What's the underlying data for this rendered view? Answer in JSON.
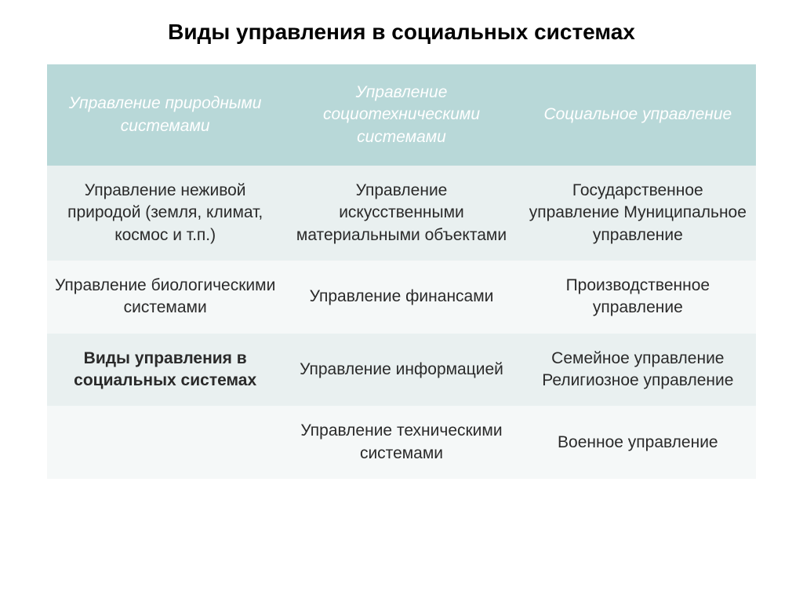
{
  "title": "Виды управления в социальных системах",
  "table": {
    "type": "table",
    "header_bg_color": "#b8d8d8",
    "header_text_color": "#ffffff",
    "row_odd_bg": "#e9f0f0",
    "row_even_bg": "#f5f8f8",
    "text_color": "#2a2a2a",
    "header_fontsize": 21,
    "cell_fontsize": 21,
    "columns": [
      "Управление природными системами",
      "Управление социотехническими системами",
      "Социальное управление"
    ],
    "rows": [
      {
        "cells": [
          {
            "text": "Управление неживой природой (земля, климат, космос и т.п.)",
            "bold": false
          },
          {
            "text": "Управление искусственными материальными объектами",
            "bold": false
          },
          {
            "text": "Государственное управление Муниципальное управление",
            "bold": false
          }
        ],
        "bg": "odd"
      },
      {
        "cells": [
          {
            "text": "Управление биологическими системами",
            "bold": false
          },
          {
            "text": "Управление финансами",
            "bold": false
          },
          {
            "text": "Производственное управление",
            "bold": false
          }
        ],
        "bg": "even"
      },
      {
        "cells": [
          {
            "text": "Виды управления в социальных системах",
            "bold": true
          },
          {
            "text": "Управление информацией",
            "bold": false
          },
          {
            "text": "Семейное управление Религиозное управление",
            "bold": false
          }
        ],
        "bg": "odd"
      },
      {
        "cells": [
          {
            "text": "",
            "bold": false
          },
          {
            "text": "Управление техническими системами",
            "bold": false
          },
          {
            "text": "Военное управление",
            "bold": false
          }
        ],
        "bg": "even"
      }
    ]
  }
}
